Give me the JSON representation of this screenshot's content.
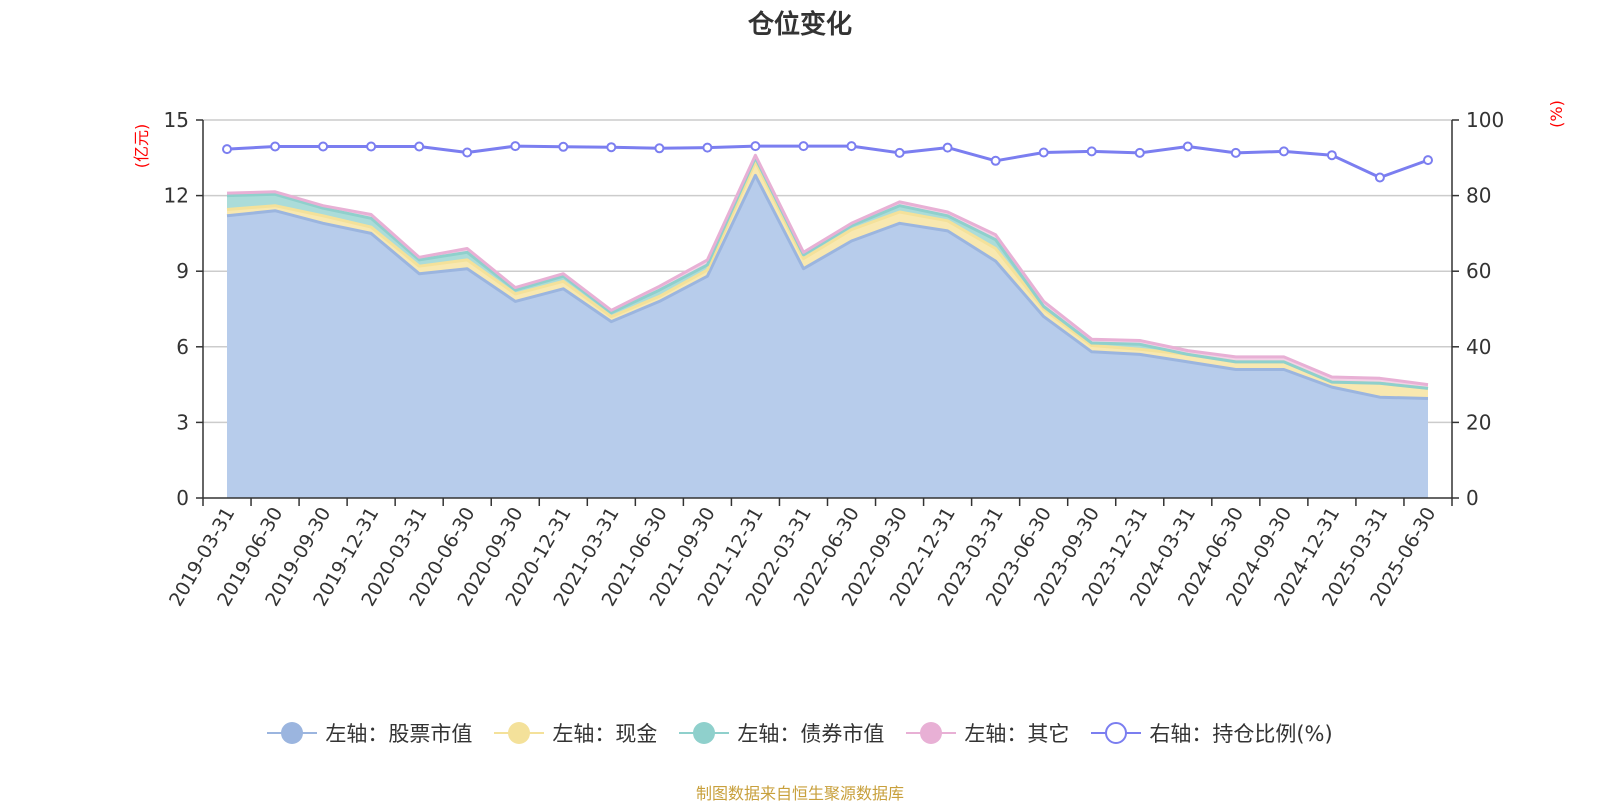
{
  "chart_data": {
    "type": "area",
    "title": "仓位变化",
    "categories": [
      "2019-03-31",
      "2019-06-30",
      "2019-09-30",
      "2019-12-31",
      "2020-03-31",
      "2020-06-30",
      "2020-09-30",
      "2020-12-31",
      "2021-03-31",
      "2021-06-30",
      "2021-09-30",
      "2021-12-31",
      "2022-03-31",
      "2022-06-30",
      "2022-09-30",
      "2022-12-31",
      "2023-03-31",
      "2023-06-30",
      "2023-09-30",
      "2023-12-31",
      "2024-03-31",
      "2024-06-30",
      "2024-09-30",
      "2024-12-31",
      "2025-03-31",
      "2025-06-30"
    ],
    "y_left": {
      "unit": "(亿元)",
      "ylim": [
        0,
        15
      ],
      "ticks": [
        0,
        3,
        6,
        9,
        12,
        15
      ]
    },
    "y_right": {
      "unit": "(%)",
      "ylim": [
        0,
        100
      ],
      "ticks": [
        0,
        20,
        40,
        60,
        80,
        100
      ]
    },
    "grid": true,
    "legend_position": "bottom",
    "series": [
      {
        "name": "左轴：股票市值",
        "axis": "left",
        "stacked": true,
        "fill": "#b7cceb",
        "stroke": "#9bb5df",
        "values": [
          11.2,
          11.4,
          10.9,
          10.5,
          8.9,
          9.1,
          7.8,
          8.3,
          7.0,
          7.8,
          8.8,
          12.8,
          9.1,
          10.2,
          10.9,
          10.6,
          9.4,
          7.2,
          5.8,
          5.7,
          5.4,
          5.1,
          5.1,
          4.4,
          4.0,
          3.95
        ]
      },
      {
        "name": "左轴：现金",
        "axis": "left",
        "stacked": true,
        "fill": "#f8e8b0",
        "stroke": "#f4e19a",
        "values": [
          0.25,
          0.2,
          0.3,
          0.25,
          0.3,
          0.35,
          0.3,
          0.3,
          0.2,
          0.2,
          0.25,
          0.55,
          0.4,
          0.45,
          0.45,
          0.4,
          0.5,
          0.3,
          0.25,
          0.2,
          0.3,
          0.3,
          0.3,
          0.2,
          0.55,
          0.4
        ]
      },
      {
        "name": "左轴：债券市值",
        "axis": "left",
        "stacked": true,
        "fill": "#abdcd9",
        "stroke": "#8fd0cc",
        "values": [
          0.55,
          0.45,
          0.3,
          0.35,
          0.25,
          0.3,
          0.15,
          0.2,
          0.15,
          0.25,
          0.2,
          0.15,
          0.15,
          0.15,
          0.25,
          0.2,
          0.35,
          0.1,
          0.1,
          0.2,
          0.0,
          0.0,
          0.0,
          0.0,
          0.0,
          0.0
        ]
      },
      {
        "name": "左轴：其它",
        "axis": "left",
        "stacked": true,
        "fill": "#f3d2e6",
        "stroke": "#e8b0d5",
        "values": [
          0.1,
          0.1,
          0.1,
          0.15,
          0.1,
          0.15,
          0.1,
          0.1,
          0.1,
          0.15,
          0.2,
          0.1,
          0.1,
          0.1,
          0.15,
          0.15,
          0.2,
          0.2,
          0.15,
          0.15,
          0.15,
          0.2,
          0.2,
          0.2,
          0.2,
          0.15
        ]
      },
      {
        "name": "右轴：持仓比例(%)",
        "axis": "right",
        "type": "line",
        "stroke": "#7b7ef0",
        "values": [
          92.3,
          93.0,
          93.0,
          93.0,
          93.0,
          91.4,
          93.1,
          92.9,
          92.8,
          92.5,
          92.7,
          93.1,
          93.1,
          93.1,
          91.3,
          92.7,
          89.2,
          91.4,
          91.7,
          91.3,
          93.0,
          91.3,
          91.7,
          90.7,
          84.8,
          89.4
        ]
      }
    ]
  },
  "source_note": "制图数据来自恒生聚源数据库"
}
